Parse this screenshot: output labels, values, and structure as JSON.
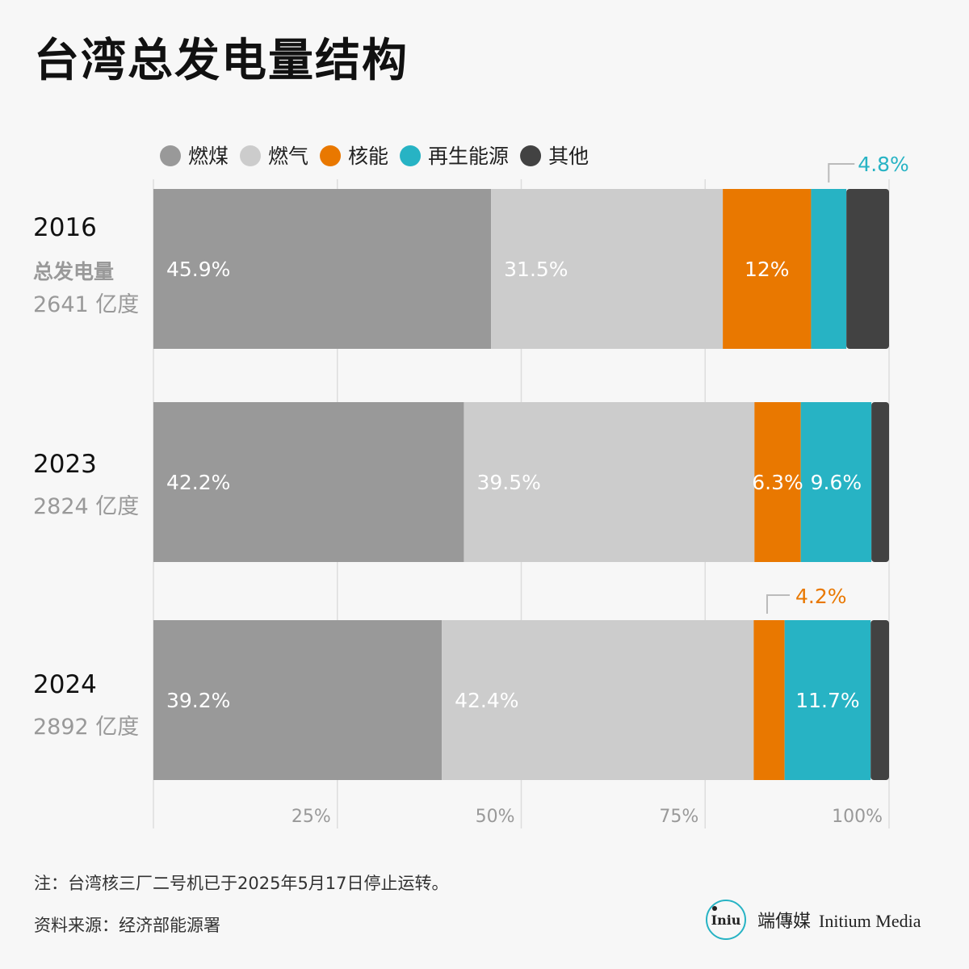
{
  "header": {
    "title": "台湾总发电量结构"
  },
  "chart_data": {
    "type": "bar",
    "orientation": "horizontal",
    "stacked": true,
    "categories": [
      "2016",
      "2023",
      "2024"
    ],
    "series": [
      {
        "name": "燃煤",
        "values": [
          45.9,
          42.2,
          39.2
        ],
        "labels": [
          "45.9%",
          "42.2%",
          "39.2%"
        ]
      },
      {
        "name": "燃气",
        "values": [
          31.5,
          39.5,
          42.4
        ],
        "labels": [
          "31.5%",
          "39.5%",
          "42.4%"
        ]
      },
      {
        "name": "核能",
        "values": [
          12.0,
          6.3,
          4.2
        ],
        "labels": [
          "12%",
          "6.3%",
          "4.2%"
        ]
      },
      {
        "name": "再生能源",
        "values": [
          4.8,
          9.6,
          11.7
        ],
        "labels": [
          "4.8%",
          "9.6%",
          "11.7%"
        ]
      },
      {
        "name": "其他",
        "values": [
          5.5,
          2.3,
          2.4
        ],
        "labels": [
          "",
          "",
          ""
        ]
      }
    ],
    "row_labels": [
      {
        "year": "2016",
        "sub_label": "总发电量",
        "total": "2641 亿度"
      },
      {
        "year": "2023",
        "sub_label": "",
        "total": "2824 亿度"
      },
      {
        "year": "2024",
        "sub_label": "",
        "total": "2892 亿度"
      }
    ],
    "x_ticks": [
      {
        "value": 25,
        "label": "25%"
      },
      {
        "value": 50,
        "label": "50%"
      },
      {
        "value": 75,
        "label": "75%"
      },
      {
        "value": 100,
        "label": "100%"
      }
    ],
    "xlim": [
      0,
      100
    ],
    "grid": true,
    "legend": "top",
    "colors": {
      "燃煤": "#999999",
      "燃气": "#cccccc",
      "核能": "#e97800",
      "再生能源": "#27b3c4",
      "其他": "#424242"
    }
  },
  "footer": {
    "note": "注：台湾核三厂二号机已于2025年5月17日停止运转。",
    "source": "资料来源：经济部能源署",
    "brand_cn": "端傳媒",
    "brand_en": "Initium Media",
    "logo_text": "Iniu"
  }
}
